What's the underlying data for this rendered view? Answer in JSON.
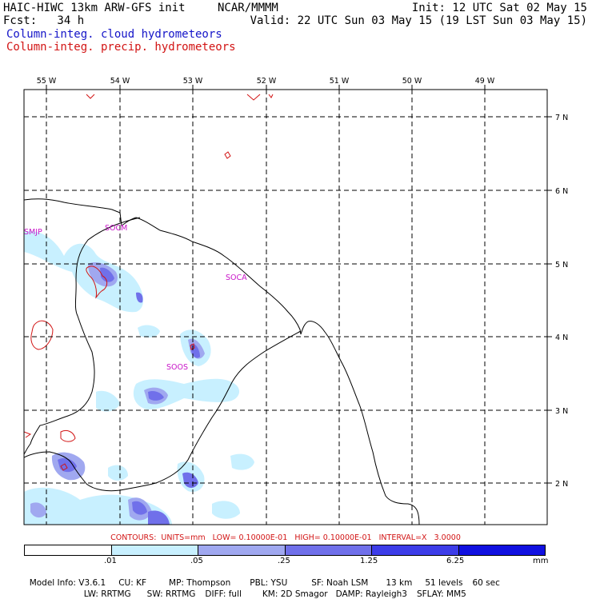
{
  "header": {
    "model_title": "HAIC-HIWC 13km ARW-GFS init",
    "institution": "NCAR/MMMM",
    "init": "Init: 12 UTC Sat 02 May 15",
    "forecast": "Fcst:   34 h",
    "valid": "Valid: 22 UTC Sun 03 May 15 (19 LST Sun 03 May 15)",
    "field_cloud": "Column-integ. cloud hydrometeors",
    "field_precip": "Column-integ. precip. hydrometeors"
  },
  "colors": {
    "cloud_legend": "#1414c8",
    "precip_legend": "#d21414",
    "coast": "#000000",
    "grid": "#000000",
    "contour": "#d21414",
    "station": "#c814c8"
  },
  "map": {
    "lon_labels": [
      "55 W",
      "54 W",
      "53 W",
      "52 W",
      "51 W",
      "50 W",
      "49 W"
    ],
    "lat_labels": [
      "7 N",
      "6 N",
      "5 N",
      "4 N",
      "3 N",
      "2 N"
    ],
    "stations": [
      "SMJP",
      "SOCM",
      "SOCA",
      "SOOS"
    ]
  },
  "contour_info": "CONTOURS:  UNITS=mm   LOW= 0.10000E-01   HIGH= 0.10000E-01   INTERVAL=X   3.0000",
  "colorbar": {
    "colors": [
      "#ffffff",
      "#c8f0ff",
      "#a0a8f0",
      "#7070ea",
      "#3c3ce8",
      "#1010e0"
    ],
    "labels": [
      ".01",
      ".05",
      ".25",
      "1.25",
      "6.25"
    ],
    "units": "mm"
  },
  "footer": {
    "line1": [
      "Model Info: V3.6.1",
      "CU: KF",
      "MP: Thompson",
      "PBL: YSU",
      "SF: Noah LSM",
      "13 km",
      "51 levels",
      "60 sec"
    ],
    "line2": [
      "LW: RRTMG",
      "SW: RRTMG",
      "DIFF: full",
      "KM: 2D Smagor",
      "DAMP: Rayleigh3",
      "SFLAY: MM5"
    ]
  }
}
